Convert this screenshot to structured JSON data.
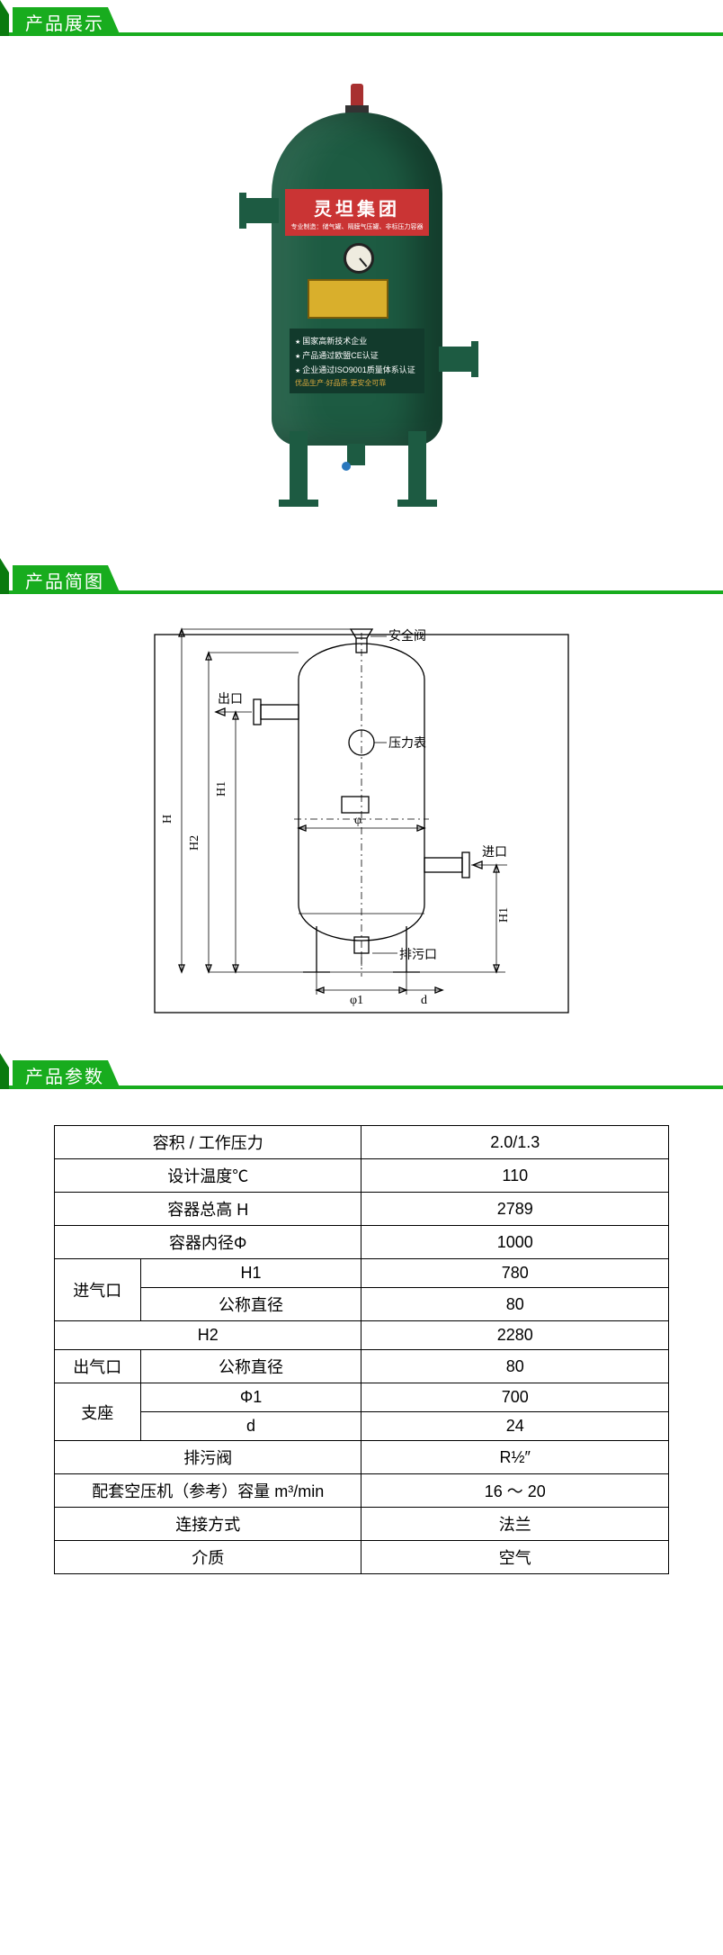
{
  "theme": {
    "accent": "#18ac1e",
    "accentDark": "#0a7a0f",
    "line": "#18ac1e"
  },
  "sections": {
    "display": "产品展示",
    "schematic": "产品简图",
    "params": "产品参数"
  },
  "product": {
    "brand_text": "灵坦集团",
    "brand_sub": "专业制造：储气罐、隔膜气压罐、非标压力容器",
    "dark_lines": [
      "国家高新技术企业",
      "产品通过欧盟CE认证",
      "企业通过ISO9001质量体系认证"
    ],
    "dark_gold": "优品生产·好品质·更安全可靠"
  },
  "schematic_labels": {
    "safety": "安全阀",
    "outlet": "出口",
    "pressure": "压力表",
    "inlet": "进口",
    "drain": "排污口",
    "H": "H",
    "H1": "H1",
    "H2": "H2",
    "phi": "φ",
    "phi1": "φ1",
    "d": "d"
  },
  "table": {
    "columns_width": {
      "c1": "14%",
      "c2": "36%",
      "c3": "50%"
    },
    "rows": [
      {
        "type": "single",
        "label": "容积 / 工作压力",
        "value": "2.0/1.3"
      },
      {
        "type": "single",
        "label": "设计温度℃",
        "value": "110"
      },
      {
        "type": "single",
        "label": "容器总高 H",
        "value": "2789"
      },
      {
        "type": "single",
        "label": "容器内径Φ",
        "value": "1000"
      },
      {
        "type": "group2",
        "group": "进气口",
        "items": [
          {
            "label": "H1",
            "value": "780"
          },
          {
            "label": "公称直径",
            "value": "80"
          }
        ]
      },
      {
        "type": "single",
        "label": "H2",
        "value": "2280"
      },
      {
        "type": "group1",
        "group": "出气口",
        "items": [
          {
            "label": "公称直径",
            "value": "80"
          }
        ]
      },
      {
        "type": "group2",
        "group": "支座",
        "items": [
          {
            "label": "Φ1",
            "value": "700"
          },
          {
            "label": "d",
            "value": "24"
          }
        ]
      },
      {
        "type": "single",
        "label": "排污阀",
        "value": "R½″"
      },
      {
        "type": "single",
        "label": "配套空压机（参考）容量 m³/min",
        "value": "16 ～ 20"
      },
      {
        "type": "single",
        "label": "连接方式",
        "value": "法兰"
      },
      {
        "type": "single",
        "label": "介质",
        "value": "空气"
      }
    ]
  }
}
